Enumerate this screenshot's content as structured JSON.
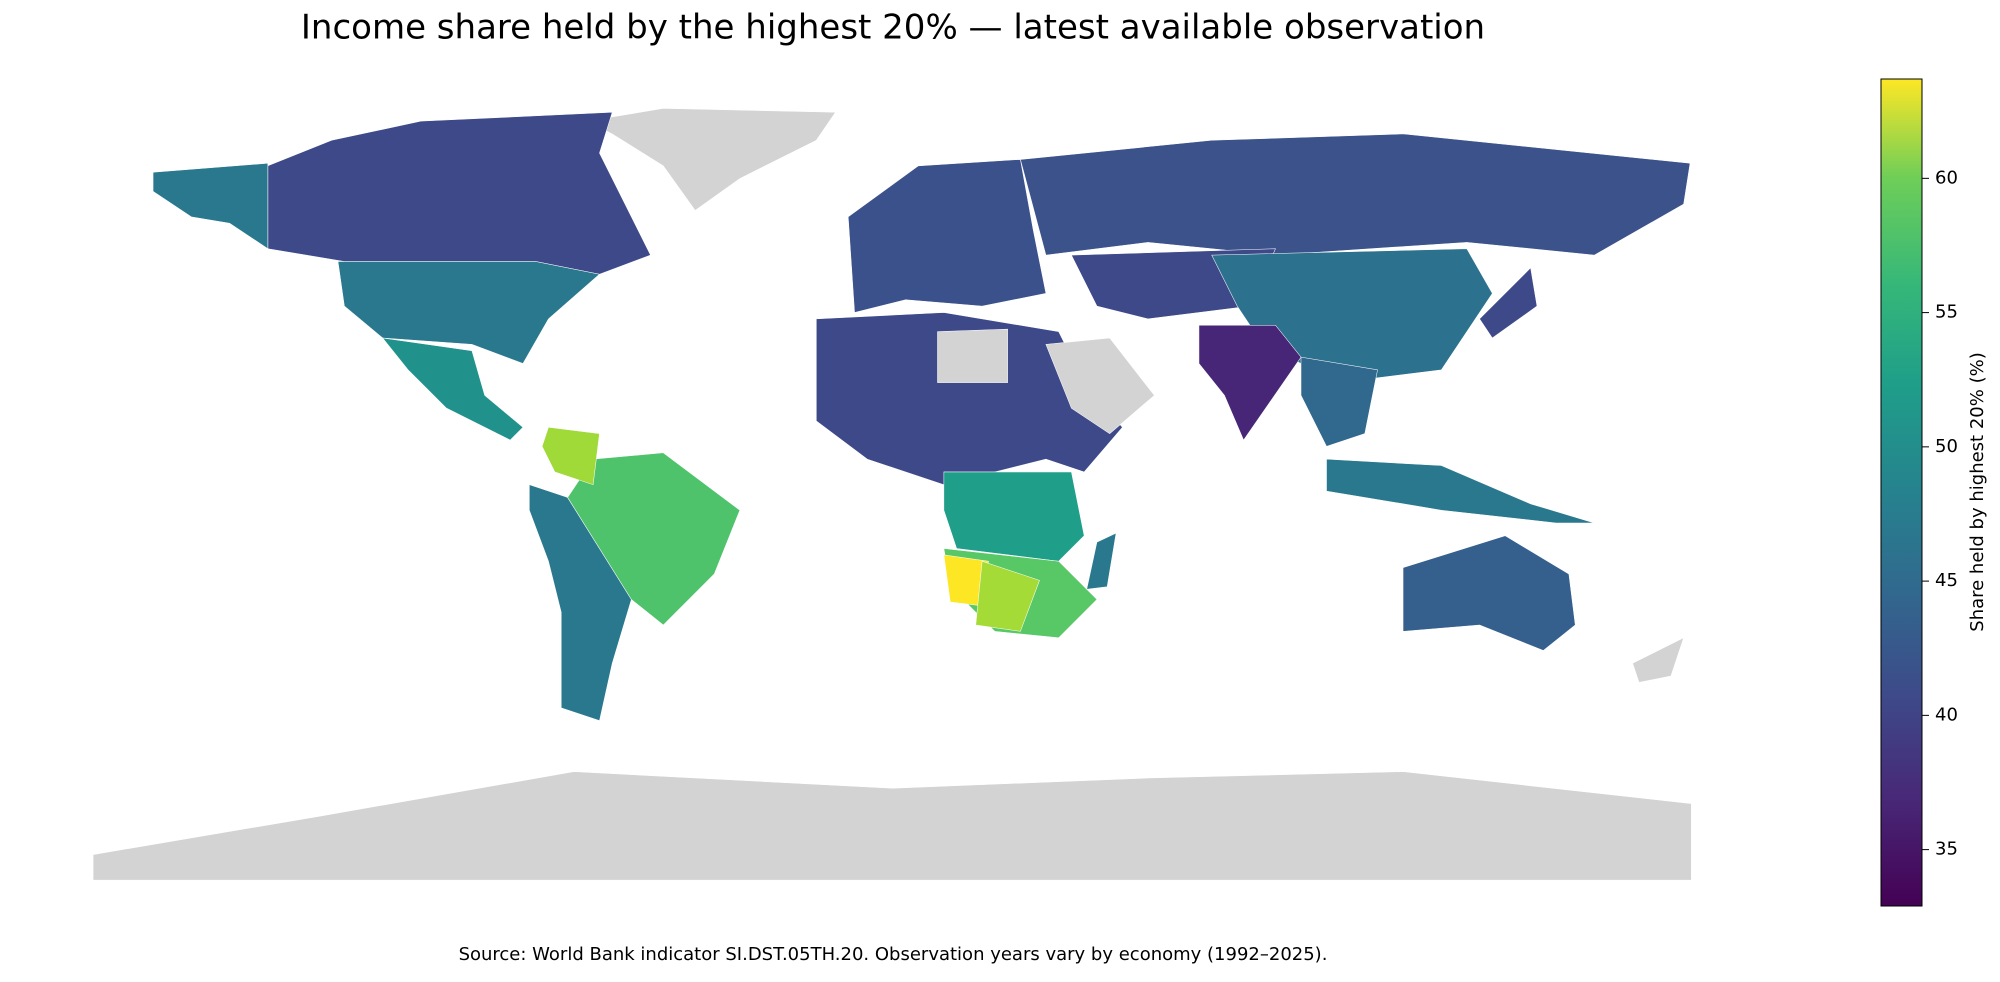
{
  "title": "Income share held by the highest 20% — latest available observation",
  "source": "Source: World Bank indicator SI.DST.05TH.20. Observation years vary by economy (1992–2025).",
  "colorbar": {
    "label": "Share held by highest 20% (%)",
    "lim": [
      32.9,
      63.7
    ],
    "ticks": [
      35,
      40,
      45,
      50,
      55,
      60
    ],
    "colormap": "viridis"
  }
}
